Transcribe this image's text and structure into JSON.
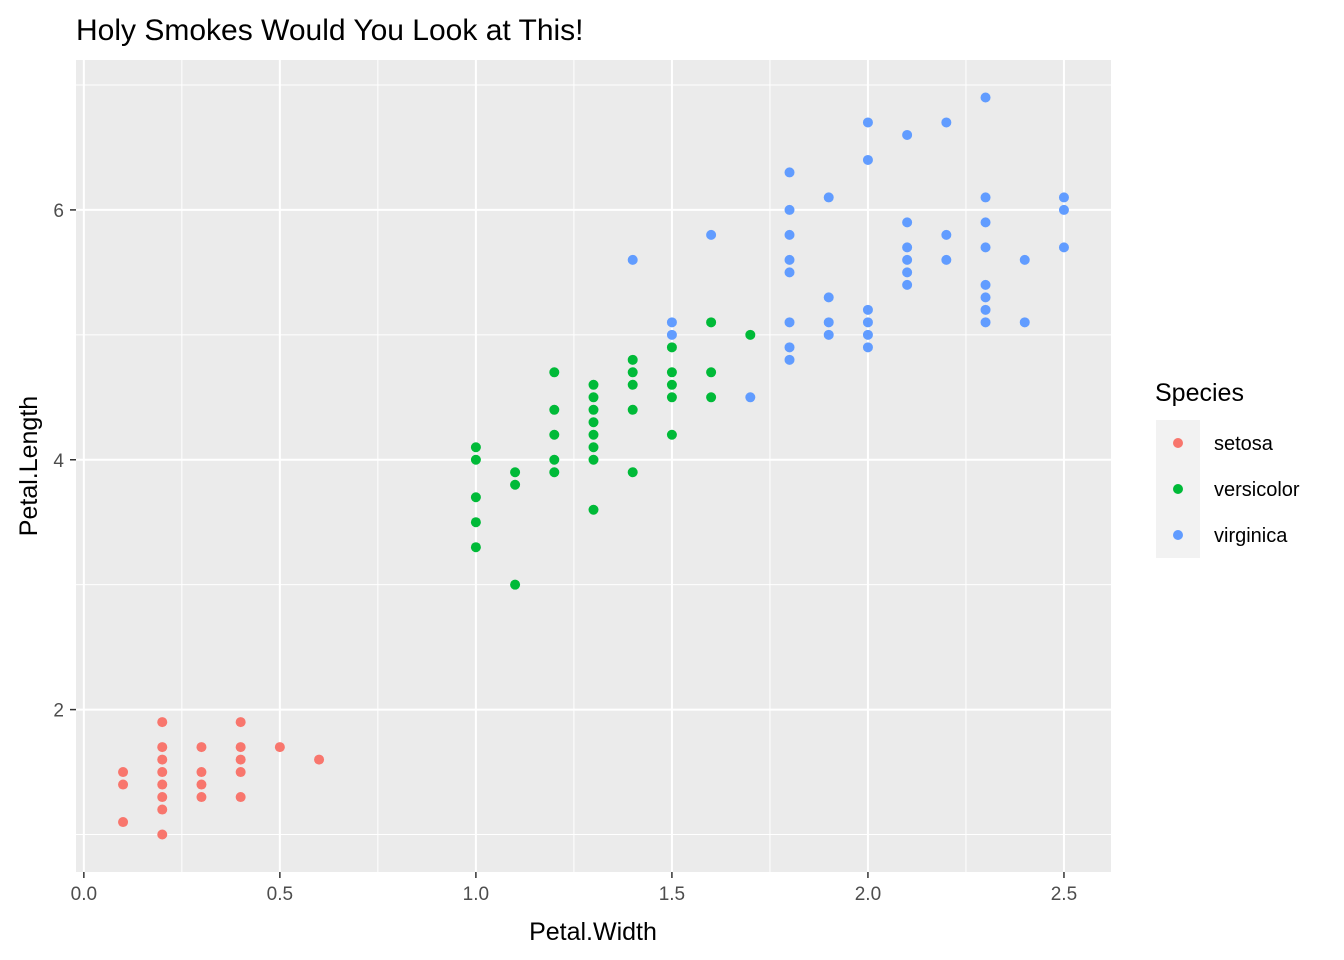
{
  "chart_data": {
    "type": "scatter",
    "title": "Holy Smokes Would You Look at This!",
    "xlabel": "Petal.Width",
    "ylabel": "Petal.Length",
    "xlim": [
      -0.02,
      2.62
    ],
    "ylim": [
      0.7,
      7.2
    ],
    "x_ticks": [
      0.0,
      0.5,
      1.0,
      1.5,
      2.0,
      2.5
    ],
    "x_tick_labels": [
      "0.0",
      "0.5",
      "1.0",
      "1.5",
      "2.0",
      "2.5"
    ],
    "y_ticks": [
      2,
      4,
      6
    ],
    "y_tick_labels": [
      "2",
      "4",
      "6"
    ],
    "grid": true,
    "background": "#ebebeb",
    "legend": {
      "title": "Species",
      "position": "right"
    },
    "series": [
      {
        "name": "setosa",
        "color": "#f8766d",
        "points": [
          [
            0.1,
            1.5
          ],
          [
            0.1,
            1.4
          ],
          [
            0.1,
            1.1
          ],
          [
            0.2,
            1.9
          ],
          [
            0.2,
            1.7
          ],
          [
            0.2,
            1.6
          ],
          [
            0.2,
            1.5
          ],
          [
            0.2,
            1.4
          ],
          [
            0.2,
            1.3
          ],
          [
            0.2,
            1.2
          ],
          [
            0.2,
            1.0
          ],
          [
            0.3,
            1.7
          ],
          [
            0.3,
            1.5
          ],
          [
            0.3,
            1.4
          ],
          [
            0.3,
            1.3
          ],
          [
            0.4,
            1.9
          ],
          [
            0.4,
            1.7
          ],
          [
            0.4,
            1.6
          ],
          [
            0.4,
            1.5
          ],
          [
            0.4,
            1.3
          ],
          [
            0.5,
            1.7
          ],
          [
            0.6,
            1.6
          ]
        ]
      },
      {
        "name": "versicolor",
        "color": "#00ba38",
        "points": [
          [
            1.0,
            4.1
          ],
          [
            1.0,
            4.0
          ],
          [
            1.0,
            3.7
          ],
          [
            1.0,
            3.5
          ],
          [
            1.0,
            3.3
          ],
          [
            1.1,
            3.9
          ],
          [
            1.1,
            3.8
          ],
          [
            1.1,
            3.0
          ],
          [
            1.2,
            4.7
          ],
          [
            1.2,
            4.4
          ],
          [
            1.2,
            4.2
          ],
          [
            1.2,
            4.0
          ],
          [
            1.2,
            3.9
          ],
          [
            1.3,
            4.6
          ],
          [
            1.3,
            4.5
          ],
          [
            1.3,
            4.4
          ],
          [
            1.3,
            4.3
          ],
          [
            1.3,
            4.2
          ],
          [
            1.3,
            4.1
          ],
          [
            1.3,
            4.0
          ],
          [
            1.3,
            3.6
          ],
          [
            1.4,
            4.8
          ],
          [
            1.4,
            4.7
          ],
          [
            1.4,
            4.6
          ],
          [
            1.4,
            4.4
          ],
          [
            1.4,
            3.9
          ],
          [
            1.5,
            4.9
          ],
          [
            1.5,
            4.7
          ],
          [
            1.5,
            4.6
          ],
          [
            1.5,
            4.5
          ],
          [
            1.5,
            4.2
          ],
          [
            1.6,
            5.1
          ],
          [
            1.6,
            4.7
          ],
          [
            1.6,
            4.5
          ],
          [
            1.7,
            5.0
          ]
        ]
      },
      {
        "name": "virginica",
        "color": "#619cff",
        "points": [
          [
            1.4,
            5.6
          ],
          [
            1.5,
            5.1
          ],
          [
            1.5,
            5.0
          ],
          [
            1.6,
            5.8
          ],
          [
            1.7,
            4.5
          ],
          [
            1.8,
            6.3
          ],
          [
            1.8,
            6.0
          ],
          [
            1.8,
            5.8
          ],
          [
            1.8,
            5.6
          ],
          [
            1.8,
            5.5
          ],
          [
            1.8,
            5.1
          ],
          [
            1.8,
            4.9
          ],
          [
            1.8,
            4.8
          ],
          [
            1.9,
            6.1
          ],
          [
            1.9,
            5.3
          ],
          [
            1.9,
            5.1
          ],
          [
            1.9,
            5.0
          ],
          [
            2.0,
            6.7
          ],
          [
            2.0,
            6.4
          ],
          [
            2.0,
            5.2
          ],
          [
            2.0,
            5.1
          ],
          [
            2.0,
            5.0
          ],
          [
            2.0,
            4.9
          ],
          [
            2.1,
            6.6
          ],
          [
            2.1,
            5.9
          ],
          [
            2.1,
            5.7
          ],
          [
            2.1,
            5.6
          ],
          [
            2.1,
            5.5
          ],
          [
            2.1,
            5.4
          ],
          [
            2.2,
            6.7
          ],
          [
            2.2,
            5.8
          ],
          [
            2.2,
            5.6
          ],
          [
            2.3,
            6.9
          ],
          [
            2.3,
            6.1
          ],
          [
            2.3,
            5.9
          ],
          [
            2.3,
            5.7
          ],
          [
            2.3,
            5.4
          ],
          [
            2.3,
            5.3
          ],
          [
            2.3,
            5.2
          ],
          [
            2.3,
            5.1
          ],
          [
            2.4,
            5.6
          ],
          [
            2.4,
            5.1
          ],
          [
            2.5,
            6.1
          ],
          [
            2.5,
            6.0
          ],
          [
            2.5,
            5.7
          ]
        ]
      }
    ]
  }
}
